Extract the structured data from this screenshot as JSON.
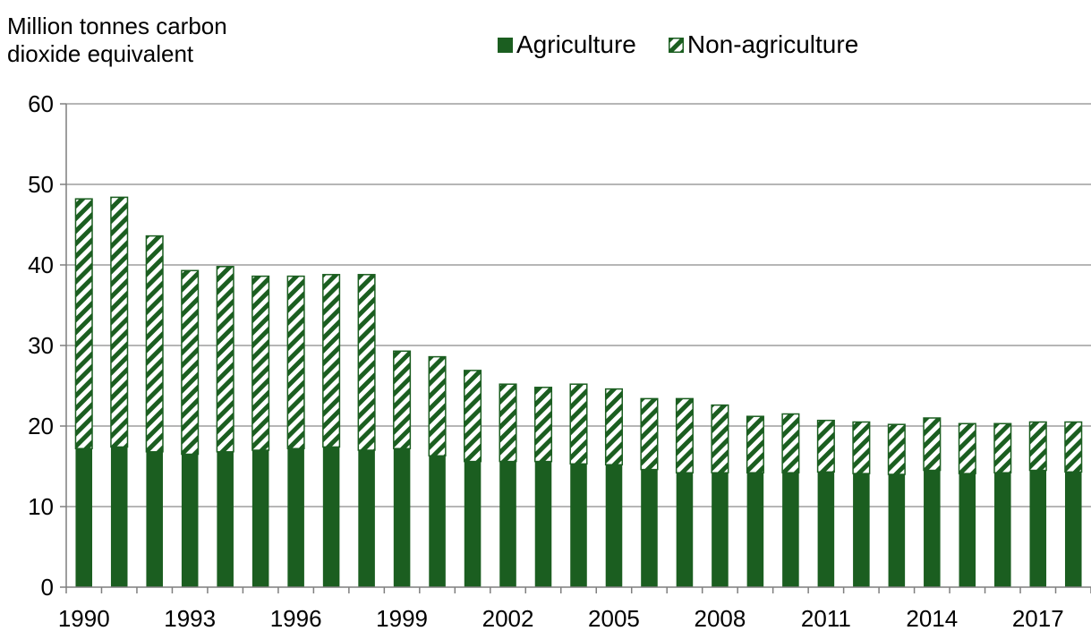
{
  "chart_data": {
    "type": "bar",
    "stacked": true,
    "ylabel_lines": [
      "Million tonnes carbon",
      "dioxide equivalent"
    ],
    "ylim": [
      0,
      60
    ],
    "yticks": [
      0,
      10,
      20,
      30,
      40,
      50,
      60
    ],
    "grid": true,
    "legend_position": "top",
    "categories": [
      "1990",
      "1991",
      "1992",
      "1993",
      "1994",
      "1995",
      "1996",
      "1997",
      "1998",
      "1999",
      "2000",
      "2001",
      "2002",
      "2003",
      "2004",
      "2005",
      "2006",
      "2007",
      "2008",
      "2009",
      "2010",
      "2011",
      "2012",
      "2013",
      "2014",
      "2015",
      "2016",
      "2017",
      "2018"
    ],
    "xtick_labels": [
      "1990",
      "1993",
      "1996",
      "1999",
      "2002",
      "2005",
      "2008",
      "2011",
      "2014",
      "2017"
    ],
    "series": [
      {
        "name": "Agriculture",
        "color": "#1b5e20",
        "pattern": "solid",
        "values": [
          17.2,
          17.4,
          16.8,
          16.5,
          16.8,
          17.0,
          17.2,
          17.4,
          17.0,
          17.2,
          16.3,
          15.6,
          15.6,
          15.6,
          15.3,
          15.2,
          14.6,
          14.2,
          14.2,
          14.2,
          14.2,
          14.3,
          14.1,
          14.0,
          14.5,
          14.1,
          14.2,
          14.5,
          14.3
        ]
      },
      {
        "name": "Non-agriculture",
        "color": "#1b5e20",
        "pattern": "diagonal-hatch",
        "values": [
          31.0,
          31.0,
          26.8,
          22.8,
          23.0,
          21.6,
          21.4,
          21.4,
          21.8,
          12.1,
          12.3,
          11.3,
          9.6,
          9.2,
          9.9,
          9.4,
          8.8,
          9.2,
          8.4,
          7.0,
          7.3,
          6.4,
          6.4,
          6.2,
          6.5,
          6.2,
          6.1,
          6.0,
          6.2
        ]
      }
    ]
  }
}
